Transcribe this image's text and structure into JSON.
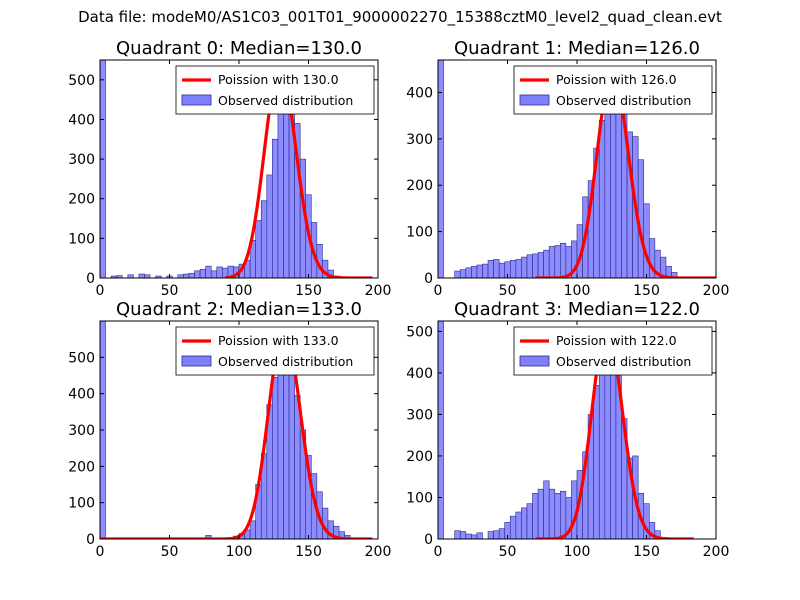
{
  "figure": {
    "title": "Data file: modeM0/AS1C03_001T01_9000002270_15388cztM0_level2_quad_clean.evt"
  },
  "colors": {
    "bar_fill": "#8080ff",
    "bar_edge": "#2a2a88",
    "curve": "#ff0000",
    "axis": "#000000"
  },
  "chart_data": [
    {
      "type": "bar",
      "title": "Quadrant 0: Median=130.0",
      "xlim": [
        0,
        200
      ],
      "ylim": [
        0,
        550
      ],
      "xticks": [
        0,
        50,
        100,
        150,
        200
      ],
      "yticks": [
        0,
        100,
        200,
        300,
        400,
        500
      ],
      "legend": [
        "Poission with 130.0",
        "Observed distribution"
      ],
      "legend_position": "top-right",
      "bin_width": 4,
      "bins": [
        {
          "x": 0,
          "count": 550
        },
        {
          "x": 8,
          "count": 5
        },
        {
          "x": 12,
          "count": 6
        },
        {
          "x": 20,
          "count": 8
        },
        {
          "x": 28,
          "count": 10
        },
        {
          "x": 32,
          "count": 8
        },
        {
          "x": 40,
          "count": 5
        },
        {
          "x": 48,
          "count": 5
        },
        {
          "x": 56,
          "count": 8
        },
        {
          "x": 60,
          "count": 10
        },
        {
          "x": 64,
          "count": 12
        },
        {
          "x": 68,
          "count": 18
        },
        {
          "x": 72,
          "count": 22
        },
        {
          "x": 76,
          "count": 30
        },
        {
          "x": 80,
          "count": 18
        },
        {
          "x": 84,
          "count": 28
        },
        {
          "x": 88,
          "count": 25
        },
        {
          "x": 92,
          "count": 30
        },
        {
          "x": 96,
          "count": 28
        },
        {
          "x": 100,
          "count": 35
        },
        {
          "x": 104,
          "count": 45
        },
        {
          "x": 108,
          "count": 95
        },
        {
          "x": 112,
          "count": 145
        },
        {
          "x": 116,
          "count": 195
        },
        {
          "x": 120,
          "count": 260
        },
        {
          "x": 124,
          "count": 350
        },
        {
          "x": 128,
          "count": 440
        },
        {
          "x": 132,
          "count": 515
        },
        {
          "x": 136,
          "count": 475
        },
        {
          "x": 140,
          "count": 390
        },
        {
          "x": 144,
          "count": 300
        },
        {
          "x": 148,
          "count": 210
        },
        {
          "x": 152,
          "count": 140
        },
        {
          "x": 156,
          "count": 85
        },
        {
          "x": 160,
          "count": 45
        },
        {
          "x": 164,
          "count": 20
        },
        {
          "x": 168,
          "count": 5
        }
      ],
      "curve": {
        "label": "Poission with 130.0",
        "mean": 130.0,
        "peak": 530,
        "x_start": 90,
        "x_end": 196
      }
    },
    {
      "type": "bar",
      "title": "Quadrant 1: Median=126.0",
      "xlim": [
        0,
        200
      ],
      "ylim": [
        0,
        470
      ],
      "xticks": [
        0,
        50,
        100,
        150,
        200
      ],
      "yticks": [
        0,
        100,
        200,
        300,
        400
      ],
      "legend": [
        "Poission with 126.0",
        "Observed distribution"
      ],
      "legend_position": "top-right",
      "bin_width": 4,
      "bins": [
        {
          "x": 0,
          "count": 470
        },
        {
          "x": 12,
          "count": 15
        },
        {
          "x": 16,
          "count": 18
        },
        {
          "x": 20,
          "count": 22
        },
        {
          "x": 24,
          "count": 25
        },
        {
          "x": 28,
          "count": 28
        },
        {
          "x": 32,
          "count": 30
        },
        {
          "x": 36,
          "count": 38
        },
        {
          "x": 40,
          "count": 40
        },
        {
          "x": 44,
          "count": 32
        },
        {
          "x": 48,
          "count": 35
        },
        {
          "x": 52,
          "count": 38
        },
        {
          "x": 56,
          "count": 40
        },
        {
          "x": 60,
          "count": 45
        },
        {
          "x": 64,
          "count": 50
        },
        {
          "x": 68,
          "count": 52
        },
        {
          "x": 72,
          "count": 55
        },
        {
          "x": 76,
          "count": 60
        },
        {
          "x": 80,
          "count": 68
        },
        {
          "x": 84,
          "count": 70
        },
        {
          "x": 88,
          "count": 75
        },
        {
          "x": 92,
          "count": 68
        },
        {
          "x": 96,
          "count": 80
        },
        {
          "x": 100,
          "count": 115
        },
        {
          "x": 104,
          "count": 175
        },
        {
          "x": 108,
          "count": 210
        },
        {
          "x": 112,
          "count": 280
        },
        {
          "x": 116,
          "count": 340
        },
        {
          "x": 120,
          "count": 380
        },
        {
          "x": 124,
          "count": 420
        },
        {
          "x": 128,
          "count": 440
        },
        {
          "x": 132,
          "count": 360
        },
        {
          "x": 136,
          "count": 315
        },
        {
          "x": 140,
          "count": 305
        },
        {
          "x": 144,
          "count": 255
        },
        {
          "x": 148,
          "count": 160
        },
        {
          "x": 152,
          "count": 85
        },
        {
          "x": 156,
          "count": 60
        },
        {
          "x": 160,
          "count": 45
        },
        {
          "x": 164,
          "count": 25
        },
        {
          "x": 168,
          "count": 12
        }
      ],
      "curve": {
        "label": "Poission with 126.0",
        "mean": 126.0,
        "peak": 445,
        "x_start": 70,
        "x_end": 200
      }
    },
    {
      "type": "bar",
      "title": "Quadrant 2: Median=133.0",
      "xlim": [
        0,
        200
      ],
      "ylim": [
        0,
        600
      ],
      "xticks": [
        0,
        50,
        100,
        150,
        200
      ],
      "yticks": [
        0,
        100,
        200,
        300,
        400,
        500
      ],
      "legend": [
        "Poission with 133.0",
        "Observed distribution"
      ],
      "legend_position": "top-right",
      "bin_width": 4,
      "bins": [
        {
          "x": 0,
          "count": 600
        },
        {
          "x": 76,
          "count": 10
        },
        {
          "x": 96,
          "count": 8
        },
        {
          "x": 100,
          "count": 15
        },
        {
          "x": 104,
          "count": 25
        },
        {
          "x": 108,
          "count": 50
        },
        {
          "x": 112,
          "count": 150
        },
        {
          "x": 116,
          "count": 235
        },
        {
          "x": 120,
          "count": 370
        },
        {
          "x": 124,
          "count": 445
        },
        {
          "x": 128,
          "count": 510
        },
        {
          "x": 132,
          "count": 555
        },
        {
          "x": 136,
          "count": 560
        },
        {
          "x": 140,
          "count": 395
        },
        {
          "x": 144,
          "count": 300
        },
        {
          "x": 148,
          "count": 230
        },
        {
          "x": 152,
          "count": 180
        },
        {
          "x": 156,
          "count": 130
        },
        {
          "x": 160,
          "count": 85
        },
        {
          "x": 164,
          "count": 50
        },
        {
          "x": 168,
          "count": 35
        },
        {
          "x": 172,
          "count": 20
        },
        {
          "x": 176,
          "count": 10
        }
      ],
      "curve": {
        "label": "Poission with 133.0",
        "mean": 133.0,
        "peak": 575,
        "x_start": 0,
        "x_end": 196
      }
    },
    {
      "type": "bar",
      "title": "Quadrant 3: Median=122.0",
      "xlim": [
        0,
        200
      ],
      "ylim": [
        0,
        525
      ],
      "xticks": [
        0,
        50,
        100,
        150,
        200
      ],
      "yticks": [
        0,
        100,
        200,
        300,
        400,
        500
      ],
      "legend": [
        "Poission with 122.0",
        "Observed distribution"
      ],
      "legend_position": "top-right",
      "bin_width": 4,
      "bins": [
        {
          "x": 0,
          "count": 525
        },
        {
          "x": 12,
          "count": 20
        },
        {
          "x": 16,
          "count": 18
        },
        {
          "x": 20,
          "count": 12
        },
        {
          "x": 24,
          "count": 10
        },
        {
          "x": 28,
          "count": 15
        },
        {
          "x": 36,
          "count": 18
        },
        {
          "x": 40,
          "count": 20
        },
        {
          "x": 44,
          "count": 25
        },
        {
          "x": 48,
          "count": 40
        },
        {
          "x": 52,
          "count": 55
        },
        {
          "x": 56,
          "count": 65
        },
        {
          "x": 60,
          "count": 75
        },
        {
          "x": 64,
          "count": 85
        },
        {
          "x": 68,
          "count": 110
        },
        {
          "x": 72,
          "count": 120
        },
        {
          "x": 76,
          "count": 140
        },
        {
          "x": 80,
          "count": 120
        },
        {
          "x": 84,
          "count": 110
        },
        {
          "x": 88,
          "count": 115
        },
        {
          "x": 92,
          "count": 100
        },
        {
          "x": 96,
          "count": 140
        },
        {
          "x": 100,
          "count": 165
        },
        {
          "x": 104,
          "count": 210
        },
        {
          "x": 108,
          "count": 300
        },
        {
          "x": 112,
          "count": 370
        },
        {
          "x": 116,
          "count": 400
        },
        {
          "x": 120,
          "count": 450
        },
        {
          "x": 124,
          "count": 475
        },
        {
          "x": 128,
          "count": 405
        },
        {
          "x": 132,
          "count": 290
        },
        {
          "x": 136,
          "count": 195
        },
        {
          "x": 140,
          "count": 200
        },
        {
          "x": 144,
          "count": 110
        },
        {
          "x": 148,
          "count": 85
        },
        {
          "x": 152,
          "count": 40
        },
        {
          "x": 156,
          "count": 20
        }
      ],
      "curve": {
        "label": "Poission with 122.0",
        "mean": 122.0,
        "peak": 505,
        "x_start": 70,
        "x_end": 184
      }
    }
  ]
}
